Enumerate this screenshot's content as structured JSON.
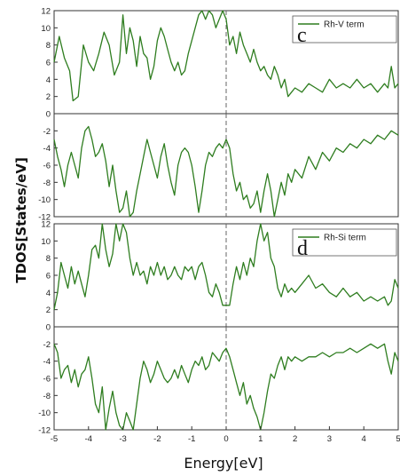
{
  "chart_data": {
    "type": "line",
    "ylabel": "TDOS[States/eV]",
    "xlabel": "Energy[eV]",
    "xlim": [
      -5,
      5
    ],
    "x_ticks": [
      -5,
      -4,
      -3,
      -2,
      -1,
      0,
      1,
      2,
      3,
      4,
      5
    ],
    "line_color": "#2e7d1f",
    "fermi_line": 0,
    "panels": [
      {
        "label": "c",
        "legend": "Rh-V term",
        "legend_placement": "top-right",
        "spin_up": {
          "ylim": [
            0,
            12
          ],
          "y_ticks": [
            0,
            2,
            4,
            6,
            8,
            10,
            12
          ],
          "x": [
            -5.0,
            -4.85,
            -4.7,
            -4.55,
            -4.45,
            -4.3,
            -4.15,
            -4.0,
            -3.85,
            -3.7,
            -3.55,
            -3.4,
            -3.25,
            -3.1,
            -3.0,
            -2.9,
            -2.8,
            -2.7,
            -2.6,
            -2.5,
            -2.4,
            -2.3,
            -2.2,
            -2.1,
            -2.0,
            -1.9,
            -1.8,
            -1.7,
            -1.6,
            -1.5,
            -1.4,
            -1.3,
            -1.2,
            -1.1,
            -1.0,
            -0.9,
            -0.8,
            -0.7,
            -0.6,
            -0.5,
            -0.4,
            -0.3,
            -0.2,
            -0.1,
            0.0,
            0.1,
            0.2,
            0.3,
            0.4,
            0.5,
            0.6,
            0.7,
            0.8,
            0.9,
            1.0,
            1.1,
            1.2,
            1.3,
            1.4,
            1.5,
            1.6,
            1.7,
            1.8,
            1.9,
            2.0,
            2.2,
            2.4,
            2.6,
            2.8,
            3.0,
            3.2,
            3.4,
            3.6,
            3.8,
            4.0,
            4.2,
            4.4,
            4.6,
            4.7,
            4.8,
            4.9,
            5.0
          ],
          "y": [
            6.0,
            9.0,
            6.5,
            5.0,
            1.5,
            2.0,
            8.0,
            6.0,
            5.0,
            7.0,
            9.5,
            8.0,
            4.5,
            6.0,
            11.5,
            7.0,
            10.0,
            8.5,
            5.5,
            9.0,
            7.0,
            6.5,
            4.0,
            5.5,
            8.5,
            10.0,
            9.0,
            7.5,
            6.0,
            5.0,
            6.0,
            4.5,
            5.0,
            7.0,
            8.5,
            10.0,
            11.5,
            12.0,
            11.0,
            12.0,
            11.5,
            10.0,
            11.0,
            12.0,
            11.0,
            8.0,
            9.0,
            7.0,
            9.5,
            8.0,
            7.0,
            6.0,
            7.5,
            6.0,
            5.0,
            5.5,
            4.5,
            4.0,
            5.5,
            4.5,
            3.0,
            4.0,
            2.0,
            2.5,
            3.0,
            2.5,
            3.5,
            3.0,
            2.5,
            4.0,
            3.0,
            3.5,
            3.0,
            4.0,
            3.0,
            3.5,
            2.5,
            3.5,
            3.0,
            5.5,
            3.0,
            3.5
          ]
        },
        "spin_down": {
          "ylim": [
            -12,
            0
          ],
          "y_ticks": [
            -2,
            -4,
            -6,
            -8,
            -10,
            -12
          ],
          "x": [
            -5.0,
            -4.9,
            -4.8,
            -4.7,
            -4.6,
            -4.5,
            -4.4,
            -4.3,
            -4.2,
            -4.1,
            -4.0,
            -3.9,
            -3.8,
            -3.7,
            -3.6,
            -3.5,
            -3.4,
            -3.3,
            -3.2,
            -3.1,
            -3.0,
            -2.9,
            -2.8,
            -2.7,
            -2.6,
            -2.5,
            -2.4,
            -2.3,
            -2.2,
            -2.1,
            -2.0,
            -1.9,
            -1.8,
            -1.7,
            -1.6,
            -1.5,
            -1.4,
            -1.3,
            -1.2,
            -1.1,
            -1.0,
            -0.9,
            -0.8,
            -0.7,
            -0.6,
            -0.5,
            -0.4,
            -0.3,
            -0.2,
            -0.1,
            0.0,
            0.1,
            0.2,
            0.3,
            0.4,
            0.5,
            0.6,
            0.7,
            0.8,
            0.9,
            1.0,
            1.1,
            1.2,
            1.3,
            1.4,
            1.5,
            1.6,
            1.7,
            1.8,
            1.9,
            2.0,
            2.2,
            2.4,
            2.6,
            2.8,
            3.0,
            3.2,
            3.4,
            3.6,
            3.8,
            4.0,
            4.2,
            4.4,
            4.6,
            4.8,
            5.0
          ],
          "y": [
            -3.0,
            -5.0,
            -6.5,
            -8.5,
            -6.0,
            -4.5,
            -6.0,
            -7.5,
            -4.0,
            -2.0,
            -1.5,
            -3.0,
            -5.0,
            -4.5,
            -3.5,
            -5.5,
            -8.5,
            -6.0,
            -9.0,
            -11.5,
            -11.0,
            -9.0,
            -12.0,
            -11.5,
            -9.0,
            -7.0,
            -5.0,
            -3.0,
            -4.5,
            -6.0,
            -7.5,
            -5.0,
            -3.5,
            -6.0,
            -8.0,
            -9.5,
            -6.0,
            -4.5,
            -4.0,
            -4.5,
            -6.0,
            -8.5,
            -11.5,
            -9.0,
            -6.0,
            -4.5,
            -5.0,
            -4.0,
            -3.5,
            -4.0,
            -3.0,
            -4.0,
            -7.0,
            -9.0,
            -8.0,
            -10.0,
            -9.5,
            -11.0,
            -10.5,
            -9.0,
            -11.5,
            -9.0,
            -7.0,
            -9.0,
            -12.0,
            -10.0,
            -8.0,
            -9.5,
            -7.0,
            -8.0,
            -6.5,
            -7.5,
            -5.0,
            -6.5,
            -4.5,
            -5.5,
            -4.0,
            -4.5,
            -3.5,
            -4.0,
            -3.0,
            -3.5,
            -2.5,
            -3.0,
            -2.0,
            -2.5
          ]
        }
      },
      {
        "label": "d",
        "legend": "Rh-Si term",
        "legend_placement": "top-right",
        "spin_up": {
          "ylim": [
            0,
            12
          ],
          "y_ticks": [
            0,
            2,
            4,
            6,
            8,
            10,
            12
          ],
          "x": [
            -5.0,
            -4.9,
            -4.8,
            -4.7,
            -4.6,
            -4.5,
            -4.4,
            -4.3,
            -4.2,
            -4.1,
            -4.0,
            -3.9,
            -3.8,
            -3.7,
            -3.6,
            -3.5,
            -3.4,
            -3.3,
            -3.2,
            -3.1,
            -3.0,
            -2.9,
            -2.8,
            -2.7,
            -2.6,
            -2.5,
            -2.4,
            -2.3,
            -2.2,
            -2.1,
            -2.0,
            -1.9,
            -1.8,
            -1.7,
            -1.6,
            -1.5,
            -1.4,
            -1.3,
            -1.2,
            -1.1,
            -1.0,
            -0.9,
            -0.8,
            -0.7,
            -0.6,
            -0.5,
            -0.4,
            -0.3,
            -0.2,
            -0.1,
            0.0,
            0.1,
            0.2,
            0.3,
            0.4,
            0.5,
            0.6,
            0.7,
            0.8,
            0.9,
            1.0,
            1.1,
            1.2,
            1.3,
            1.4,
            1.5,
            1.6,
            1.7,
            1.8,
            1.9,
            2.0,
            2.2,
            2.4,
            2.6,
            2.8,
            3.0,
            3.2,
            3.4,
            3.6,
            3.8,
            4.0,
            4.2,
            4.4,
            4.6,
            4.7,
            4.8,
            4.9,
            5.0
          ],
          "y": [
            2.0,
            4.0,
            7.5,
            6.0,
            4.5,
            7.0,
            5.0,
            6.5,
            5.0,
            3.5,
            6.0,
            9.0,
            9.5,
            8.0,
            12.0,
            9.0,
            7.0,
            8.5,
            12.0,
            10.0,
            12.0,
            11.0,
            8.0,
            6.0,
            7.5,
            6.0,
            6.5,
            5.0,
            7.0,
            6.0,
            7.5,
            6.0,
            7.0,
            5.5,
            6.0,
            7.0,
            6.0,
            5.5,
            7.0,
            6.5,
            7.0,
            5.5,
            7.0,
            7.5,
            6.0,
            4.0,
            3.5,
            5.0,
            4.0,
            2.5,
            2.5,
            2.5,
            5.0,
            7.0,
            5.5,
            7.5,
            6.0,
            8.0,
            7.0,
            10.0,
            12.0,
            10.0,
            11.0,
            8.0,
            7.0,
            4.5,
            3.5,
            5.0,
            4.0,
            4.5,
            4.0,
            5.0,
            6.0,
            4.5,
            5.0,
            4.0,
            3.5,
            4.5,
            3.5,
            4.0,
            3.0,
            3.5,
            3.0,
            3.5,
            2.5,
            3.0,
            5.5,
            4.5
          ]
        },
        "spin_down": {
          "ylim": [
            -12,
            0
          ],
          "y_ticks": [
            -2,
            -4,
            -6,
            -8,
            -10,
            -12
          ],
          "x": [
            -5.0,
            -4.9,
            -4.8,
            -4.7,
            -4.6,
            -4.5,
            -4.4,
            -4.3,
            -4.2,
            -4.1,
            -4.0,
            -3.9,
            -3.8,
            -3.7,
            -3.6,
            -3.5,
            -3.4,
            -3.3,
            -3.2,
            -3.1,
            -3.0,
            -2.9,
            -2.8,
            -2.7,
            -2.6,
            -2.5,
            -2.4,
            -2.3,
            -2.2,
            -2.1,
            -2.0,
            -1.9,
            -1.8,
            -1.7,
            -1.6,
            -1.5,
            -1.4,
            -1.3,
            -1.2,
            -1.1,
            -1.0,
            -0.9,
            -0.8,
            -0.7,
            -0.6,
            -0.5,
            -0.4,
            -0.3,
            -0.2,
            -0.1,
            0.0,
            0.1,
            0.2,
            0.3,
            0.4,
            0.5,
            0.6,
            0.7,
            0.8,
            0.9,
            1.0,
            1.1,
            1.2,
            1.3,
            1.4,
            1.5,
            1.6,
            1.7,
            1.8,
            1.9,
            2.0,
            2.2,
            2.4,
            2.6,
            2.8,
            3.0,
            3.2,
            3.4,
            3.6,
            3.8,
            4.0,
            4.2,
            4.4,
            4.6,
            4.7,
            4.8,
            4.9,
            5.0
          ],
          "y": [
            -2.0,
            -3.0,
            -6.0,
            -5.0,
            -4.5,
            -6.5,
            -5.0,
            -7.0,
            -5.5,
            -5.0,
            -3.5,
            -6.0,
            -9.0,
            -10.0,
            -7.0,
            -12.0,
            -9.5,
            -7.5,
            -10.0,
            -11.5,
            -12.0,
            -10.0,
            -11.0,
            -12.0,
            -9.0,
            -6.0,
            -4.0,
            -5.0,
            -6.5,
            -5.5,
            -4.0,
            -5.0,
            -6.0,
            -6.5,
            -6.0,
            -5.0,
            -6.0,
            -4.5,
            -5.5,
            -6.5,
            -5.0,
            -4.0,
            -4.5,
            -3.5,
            -5.0,
            -4.5,
            -3.0,
            -3.5,
            -4.0,
            -3.0,
            -2.5,
            -3.5,
            -5.0,
            -6.5,
            -8.0,
            -6.5,
            -9.0,
            -8.0,
            -9.5,
            -10.5,
            -12.0,
            -10.0,
            -7.5,
            -5.5,
            -6.0,
            -4.5,
            -3.5,
            -5.0,
            -3.5,
            -4.0,
            -3.5,
            -4.0,
            -3.5,
            -3.5,
            -3.0,
            -3.5,
            -3.0,
            -3.0,
            -2.5,
            -3.0,
            -2.5,
            -2.0,
            -2.5,
            -2.0,
            -4.0,
            -5.5,
            -3.0,
            -4.0
          ]
        }
      }
    ]
  }
}
